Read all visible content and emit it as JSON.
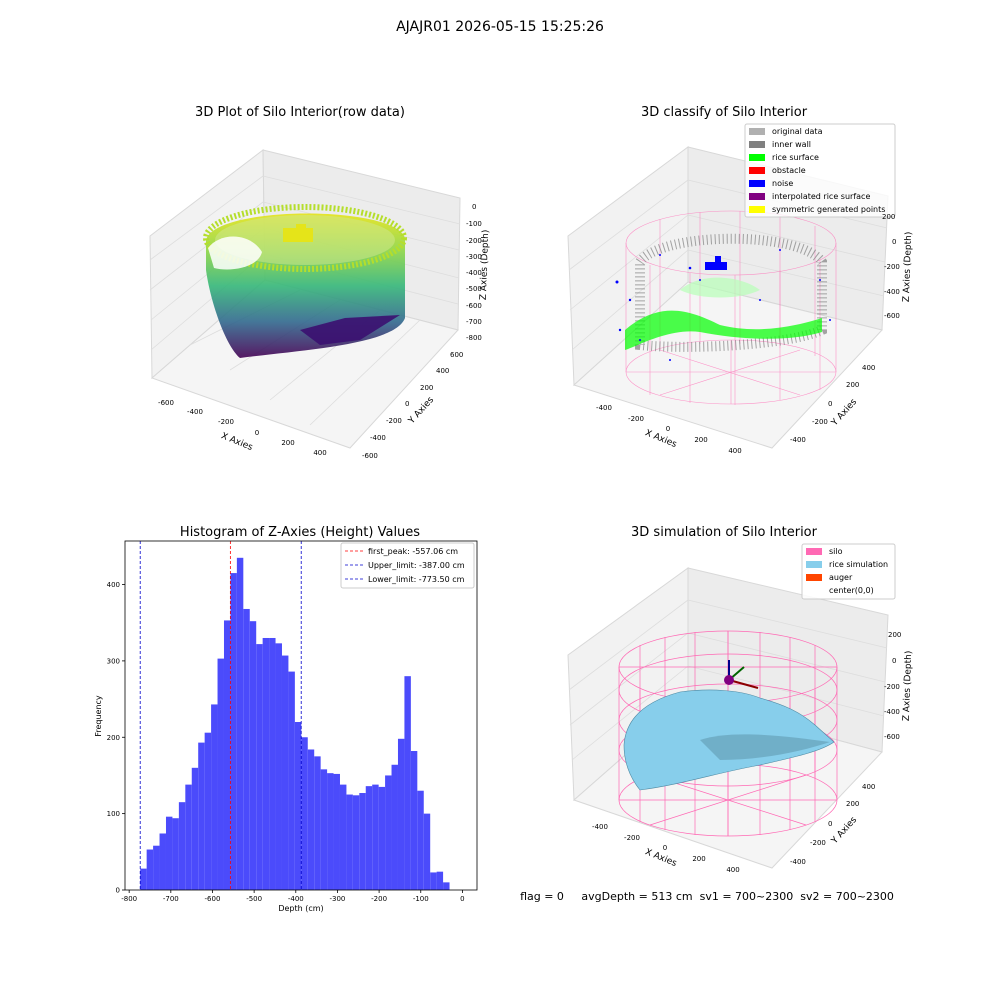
{
  "suptitle": "AJAJR01 2026-05-15 15:25:26",
  "colors": {
    "hist_bar": "#4b4bfb",
    "first_peak_line": "#ff0000",
    "limit_line": "#0000cc",
    "silo": "#ff69b4",
    "rice": "#87ceeb",
    "auger": "#ff4500"
  },
  "panel_raw": {
    "title": "3D Plot of Silo Interior(row data)",
    "x_ticks": [
      "-600",
      "-400",
      "-200",
      "0",
      "200",
      "400"
    ],
    "y_ticks": [
      "-600",
      "-400",
      "-200",
      "0",
      "200",
      "400",
      "600"
    ],
    "z_ticks": [
      "0",
      "-100",
      "-200",
      "-300",
      "-400",
      "-500",
      "-600",
      "-700",
      "-800"
    ],
    "xlabel": "X Axies",
    "ylabel": "Y Axies",
    "zlabel": "Z Axies (Depth)"
  },
  "panel_classify": {
    "title": "3D classify of Silo Interior",
    "legend": [
      {
        "label": "original data",
        "color": "#b0b0b0"
      },
      {
        "label": "inner wall",
        "color": "#808080"
      },
      {
        "label": "rice surface",
        "color": "#00ff00"
      },
      {
        "label": "obstacle",
        "color": "#ff0000"
      },
      {
        "label": "noise",
        "color": "#0000ff"
      },
      {
        "label": "interpolated rice surface",
        "color": "#800080"
      },
      {
        "label": "symmetric generated points",
        "color": "#ffff00"
      }
    ],
    "x_ticks": [
      "-400",
      "-200",
      "0",
      "200",
      "400"
    ],
    "y_ticks": [
      "-400",
      "-200",
      "0",
      "200",
      "400"
    ],
    "z_ticks": [
      "0",
      "-200",
      "-400",
      "-600"
    ],
    "z_extra_tick": "200",
    "xlabel": "X Axies",
    "ylabel": "Y Axies",
    "zlabel": "Z Axies (Depth)"
  },
  "panel_sim": {
    "title": "3D simulation of Silo Interior",
    "legend": [
      {
        "label": "silo",
        "color": "#ff69b4"
      },
      {
        "label": "rice simulation",
        "color": "#87ceeb"
      },
      {
        "label": "auger",
        "color": "#ff4500"
      },
      {
        "label": "center(0,0)",
        "color": "none"
      }
    ],
    "x_ticks": [
      "-400",
      "-200",
      "0",
      "200",
      "400"
    ],
    "y_ticks": [
      "-400",
      "-200",
      "0",
      "200",
      "400"
    ],
    "z_ticks": [
      "200",
      "0",
      "-200",
      "-400",
      "-600"
    ],
    "xlabel": "X Axies",
    "ylabel": "Y Axies",
    "zlabel": "Z Axies (Depth)"
  },
  "status_line": "flag = 0     avgDepth = 513 cm  sv1 = 700~2300  sv2 = 700~2300",
  "chart_data": [
    {
      "type": "bar",
      "title": "Histogram of Z-Axies (Height) Values",
      "xlabel": "Depth (cm)",
      "ylabel": "Frequency",
      "xlim": [
        -810,
        35
      ],
      "ylim": [
        0,
        457
      ],
      "x_ticks": [
        -800,
        -700,
        -600,
        -500,
        -400,
        -300,
        -200,
        -100,
        0
      ],
      "y_ticks": [
        0,
        100,
        200,
        300,
        400
      ],
      "bin_start": -773.5,
      "bin_width": 15.47,
      "values": [
        28,
        53,
        58,
        74,
        96,
        94,
        115,
        138,
        160,
        193,
        206,
        243,
        303,
        353,
        415,
        435,
        368,
        352,
        322,
        330,
        330,
        323,
        307,
        286,
        220,
        200,
        184,
        175,
        158,
        153,
        152,
        138,
        125,
        124,
        127,
        136,
        138,
        135,
        150,
        164,
        198,
        280,
        182,
        130,
        100,
        23,
        24,
        10
      ],
      "vlines": [
        {
          "name": "first_peak",
          "label": "first_peak: -557.06 cm",
          "x": -557.06,
          "color": "#ff0000"
        },
        {
          "name": "upper_limit",
          "label": "Upper_limit: -387.00 cm",
          "x": -387.0,
          "color": "#0000cc"
        },
        {
          "name": "lower_limit",
          "label": "Lower_limit: -773.50 cm",
          "x": -773.5,
          "color": "#0000cc"
        }
      ],
      "legend_position": "top-right"
    }
  ]
}
